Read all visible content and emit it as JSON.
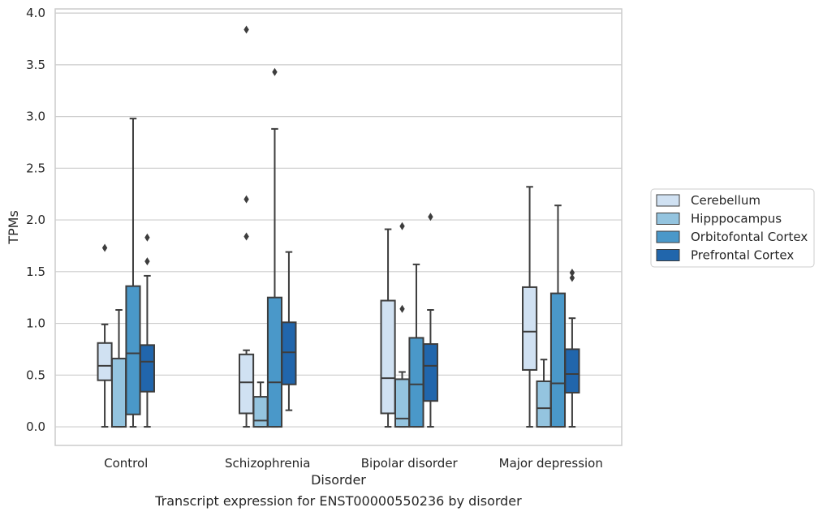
{
  "chart_data": {
    "type": "box",
    "title": "",
    "caption": "Transcript expression for ENST00000550236 by disorder",
    "xlabel": "Disorder",
    "ylabel": "TPMs",
    "ylim": [
      -0.18,
      4.04
    ],
    "yticks": [
      0.0,
      0.5,
      1.0,
      1.5,
      2.0,
      2.5,
      3.0,
      3.5,
      4.0
    ],
    "ytick_labels": [
      "0.0",
      "0.5",
      "1.0",
      "1.5",
      "2.0",
      "2.5",
      "3.0",
      "3.5",
      "4.0"
    ],
    "grid": "horizontal",
    "legend_position": "right",
    "categories": [
      "Control",
      "Schizophrenia",
      "Bipolar disorder",
      "Major depression"
    ],
    "series": [
      {
        "name": "Cerebellum",
        "color": "#d0e1f2",
        "boxes": [
          {
            "whisker_low": 0.0,
            "q1": 0.45,
            "median": 0.59,
            "q3": 0.81,
            "whisker_high": 0.99,
            "outliers": [
              1.73
            ]
          },
          {
            "whisker_low": 0.0,
            "q1": 0.13,
            "median": 0.43,
            "q3": 0.7,
            "whisker_high": 0.74,
            "outliers": [
              1.84,
              2.2,
              3.84
            ]
          },
          {
            "whisker_low": 0.0,
            "q1": 0.13,
            "median": 0.47,
            "q3": 1.22,
            "whisker_high": 1.91,
            "outliers": []
          },
          {
            "whisker_low": 0.0,
            "q1": 0.55,
            "median": 0.92,
            "q3": 1.35,
            "whisker_high": 2.32,
            "outliers": []
          }
        ]
      },
      {
        "name": "Hipppocampus",
        "color": "#94c4df",
        "boxes": [
          {
            "whisker_low": 0.0,
            "q1": 0.0,
            "median": 0.0,
            "q3": 0.66,
            "whisker_high": 1.13,
            "outliers": []
          },
          {
            "whisker_low": 0.0,
            "q1": 0.0,
            "median": 0.06,
            "q3": 0.29,
            "whisker_high": 0.43,
            "outliers": []
          },
          {
            "whisker_low": 0.0,
            "q1": 0.0,
            "median": 0.08,
            "q3": 0.46,
            "whisker_high": 0.53,
            "outliers": [
              1.14,
              1.94
            ]
          },
          {
            "whisker_low": 0.0,
            "q1": 0.0,
            "median": 0.18,
            "q3": 0.44,
            "whisker_high": 0.65,
            "outliers": []
          }
        ]
      },
      {
        "name": "Orbitofontal Cortex",
        "color": "#4a98c9",
        "boxes": [
          {
            "whisker_low": 0.0,
            "q1": 0.12,
            "median": 0.71,
            "q3": 1.36,
            "whisker_high": 2.98,
            "outliers": []
          },
          {
            "whisker_low": 0.0,
            "q1": 0.0,
            "median": 0.43,
            "q3": 1.25,
            "whisker_high": 2.88,
            "outliers": [
              3.43
            ]
          },
          {
            "whisker_low": 0.0,
            "q1": 0.0,
            "median": 0.41,
            "q3": 0.86,
            "whisker_high": 1.57,
            "outliers": []
          },
          {
            "whisker_low": 0.0,
            "q1": 0.0,
            "median": 0.42,
            "q3": 1.29,
            "whisker_high": 2.14,
            "outliers": []
          }
        ]
      },
      {
        "name": "Prefrontal Cortex",
        "color": "#2166ac",
        "boxes": [
          {
            "whisker_low": 0.0,
            "q1": 0.34,
            "median": 0.63,
            "q3": 0.79,
            "whisker_high": 1.46,
            "outliers": [
              1.6,
              1.83
            ]
          },
          {
            "whisker_low": 0.16,
            "q1": 0.41,
            "median": 0.72,
            "q3": 1.01,
            "whisker_high": 1.69,
            "outliers": []
          },
          {
            "whisker_low": 0.0,
            "q1": 0.25,
            "median": 0.59,
            "q3": 0.8,
            "whisker_high": 1.13,
            "outliers": [
              2.03
            ]
          },
          {
            "whisker_low": 0.0,
            "q1": 0.33,
            "median": 0.51,
            "q3": 0.75,
            "whisker_high": 1.05,
            "outliers": [
              1.44,
              1.49
            ]
          }
        ]
      }
    ]
  }
}
